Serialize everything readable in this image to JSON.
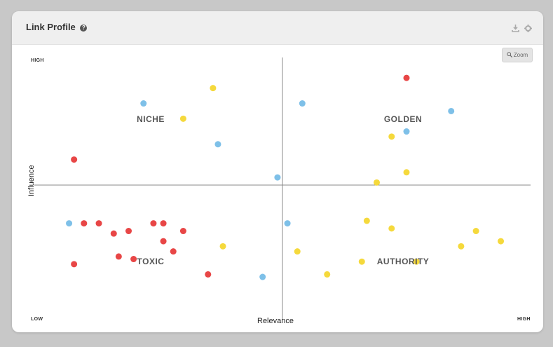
{
  "header": {
    "title": "Link Profile",
    "help_icon": "help-icon",
    "icons": [
      "download-icon",
      "gear-icon"
    ]
  },
  "toolbar": {
    "zoom_label": "Zoom",
    "zoom_icon": "zoom-icon"
  },
  "colors": {
    "toxic": "#e84646",
    "golden": "#f5d93c",
    "neutral": "#7ec0e8",
    "axis": "#888888"
  },
  "chart_data": {
    "type": "scatter",
    "title": "",
    "xlabel": "Relevance",
    "ylabel": "Influence",
    "xlim": [
      0,
      100
    ],
    "ylim": [
      0,
      100
    ],
    "grid": false,
    "x_low_label": "LOW",
    "x_high_label": "HIGH",
    "y_high_label": "HIGH",
    "quadrant_labels": {
      "top_left": "NICHE",
      "top_right": "GOLDEN",
      "bottom_left": "TOXIC",
      "bottom_right": "AUTHORITY"
    },
    "series": [
      {
        "color": "#e84646",
        "points": [
          [
            75,
            92
          ],
          [
            8,
            60
          ],
          [
            10,
            35
          ],
          [
            13,
            35
          ],
          [
            24,
            35
          ],
          [
            26,
            35
          ],
          [
            16,
            31
          ],
          [
            19,
            32
          ],
          [
            30,
            32
          ],
          [
            26,
            28
          ],
          [
            28,
            24
          ],
          [
            17,
            22
          ],
          [
            20,
            21
          ],
          [
            8,
            19
          ],
          [
            35,
            15
          ]
        ]
      },
      {
        "color": "#f5d93c",
        "points": [
          [
            36,
            88
          ],
          [
            30,
            76
          ],
          [
            72,
            69
          ],
          [
            75,
            55
          ],
          [
            69,
            51
          ],
          [
            67,
            36
          ],
          [
            72,
            33
          ],
          [
            89,
            32
          ],
          [
            38,
            26
          ],
          [
            86,
            26
          ],
          [
            94,
            28
          ],
          [
            53,
            24
          ],
          [
            66,
            20
          ],
          [
            77,
            20
          ],
          [
            59,
            15
          ]
        ]
      },
      {
        "color": "#7ec0e8",
        "points": [
          [
            22,
            82
          ],
          [
            54,
            82
          ],
          [
            84,
            79
          ],
          [
            75,
            71
          ],
          [
            37,
            66
          ],
          [
            49,
            53
          ],
          [
            7,
            35
          ],
          [
            51,
            35
          ],
          [
            46,
            14
          ]
        ]
      }
    ]
  }
}
